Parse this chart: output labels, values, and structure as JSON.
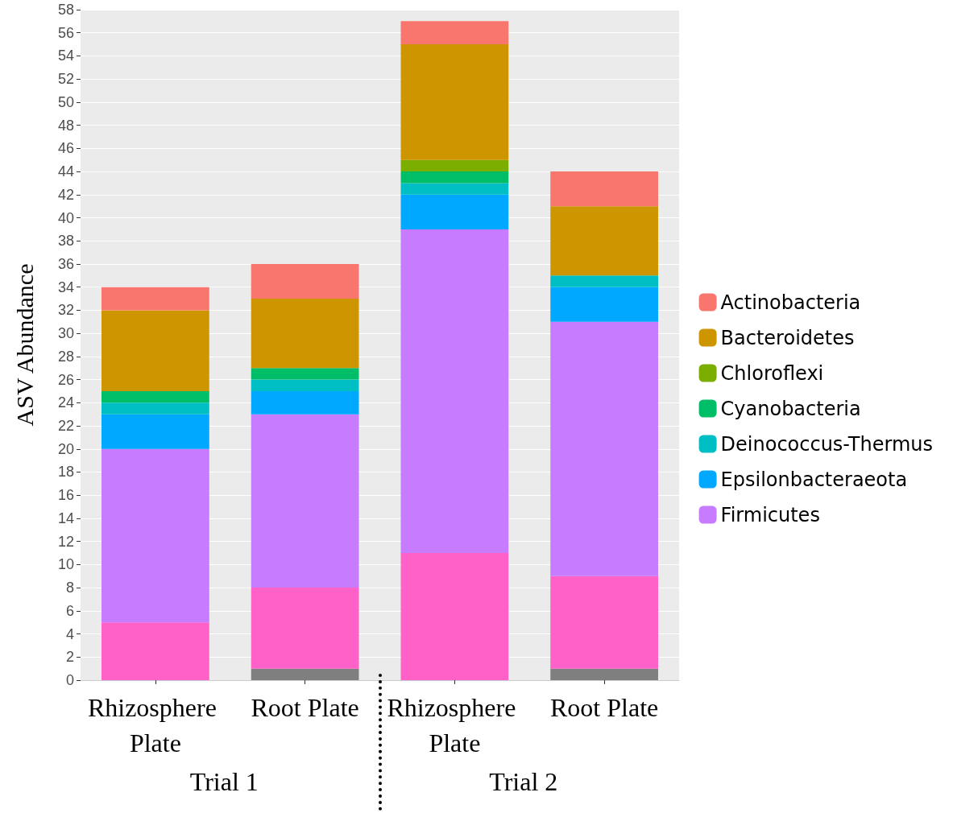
{
  "chart_data": {
    "type": "bar",
    "stacked": true,
    "ylabel": "ASV Abundance",
    "categories": [
      "Rhizosphere Plate",
      "Root Plate",
      "Rhizosphere Plate",
      "Root Plate"
    ],
    "series": [
      {
        "color": "#7f7f7f",
        "values": [
          0,
          1,
          0,
          1
        ]
      },
      {
        "color": "#ff61c9",
        "values": [
          5,
          7,
          11,
          8
        ]
      },
      {
        "name": "Firmicutes",
        "color": "#c77cff",
        "values": [
          15,
          15,
          28,
          22
        ]
      },
      {
        "name": "Epsilonbacteraeota",
        "color": "#00a9ff",
        "values": [
          3,
          2,
          3,
          3
        ]
      },
      {
        "name": "Deinococcus-Thermus",
        "color": "#00bfc4",
        "values": [
          1,
          1,
          1,
          1
        ]
      },
      {
        "name": "Cyanobacteria",
        "color": "#00be67",
        "values": [
          1,
          1,
          1,
          0
        ]
      },
      {
        "name": "Chloroflexi",
        "color": "#7cae00",
        "values": [
          0,
          0,
          1,
          0
        ]
      },
      {
        "name": "Bacteroidetes",
        "color": "#cd9600",
        "values": [
          7,
          6,
          10,
          6
        ]
      },
      {
        "name": "Actinobacteria",
        "color": "#f8766d",
        "values": [
          2,
          3,
          2,
          3
        ]
      }
    ],
    "ylim": [
      0,
      58
    ],
    "yticks": [
      0,
      2,
      4,
      6,
      8,
      10,
      12,
      14,
      16,
      18,
      20,
      22,
      24,
      26,
      28,
      30,
      32,
      34,
      36,
      38,
      40,
      42,
      44,
      46,
      48,
      50,
      52,
      54,
      56,
      58
    ],
    "grid": "y",
    "legend": "right",
    "annotations": [
      "Trial 1",
      "Trial 2"
    ]
  }
}
